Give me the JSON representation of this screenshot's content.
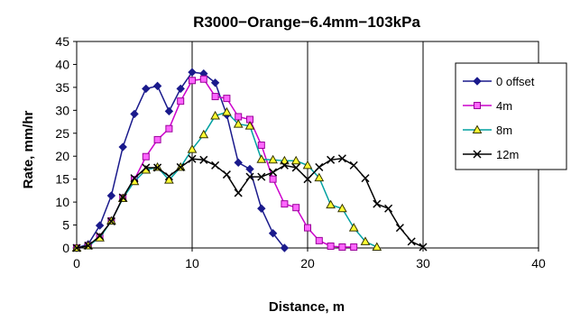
{
  "chart_data": {
    "type": "line",
    "title": "R3000−Orange−6.4mm−103kPa",
    "xlabel": "Distance, m",
    "ylabel": "Rate, mm/hr",
    "xlim": [
      0,
      40
    ],
    "ylim": [
      0,
      45
    ],
    "xticks": [
      0,
      10,
      20,
      30,
      40
    ],
    "yticks": [
      0,
      5,
      10,
      15,
      20,
      25,
      30,
      35,
      40,
      45
    ],
    "grid": "vertical",
    "legend_position": "right",
    "series": [
      {
        "name": "0 offset",
        "color": "#1a1a8c",
        "marker": "diamond",
        "x": [
          0,
          1,
          2,
          3,
          4,
          5,
          6,
          7,
          8,
          9,
          10,
          11,
          12,
          13,
          14,
          15,
          16,
          17,
          18
        ],
        "y": [
          0,
          0.8,
          4.9,
          11.4,
          22.0,
          29.2,
          34.7,
          35.3,
          29.8,
          34.7,
          38.3,
          38.0,
          36.0,
          29.0,
          18.6,
          17.2,
          8.6,
          3.2,
          0
        ]
      },
      {
        "name": "4m",
        "color": "#cc00cc",
        "marker": "square",
        "x": [
          0,
          1,
          2,
          3,
          4,
          5,
          6,
          7,
          8,
          9,
          10,
          11,
          12,
          13,
          14,
          15,
          16,
          17,
          18,
          19,
          20,
          21,
          22,
          23,
          24
        ],
        "y": [
          0,
          0.5,
          2.4,
          5.9,
          10.9,
          14.9,
          19.9,
          23.6,
          26.0,
          32.0,
          36.5,
          36.8,
          33.0,
          32.6,
          28.6,
          28.0,
          22.4,
          15.0,
          9.6,
          8.8,
          4.4,
          1.6,
          0.4,
          0.2,
          0.2
        ]
      },
      {
        "name": "8m",
        "color": "#00a0a0",
        "marker": "triangle",
        "x": [
          0,
          1,
          2,
          3,
          4,
          5,
          6,
          7,
          8,
          9,
          10,
          11,
          12,
          13,
          14,
          15,
          16,
          17,
          18,
          19,
          20,
          21,
          22,
          23,
          24,
          25,
          26
        ],
        "y": [
          0,
          0.5,
          2.2,
          5.9,
          10.8,
          14.5,
          17.0,
          17.6,
          14.8,
          17.6,
          21.5,
          24.7,
          28.8,
          29.6,
          27.0,
          26.6,
          19.3,
          19.2,
          19.0,
          19.0,
          18.0,
          15.3,
          9.4,
          8.6,
          4.4,
          1.4,
          0.2
        ]
      },
      {
        "name": "12m",
        "color": "#000000",
        "marker": "x",
        "x": [
          0,
          1,
          2,
          3,
          4,
          5,
          6,
          7,
          8,
          9,
          10,
          11,
          12,
          13,
          14,
          15,
          16,
          17,
          18,
          19,
          20,
          21,
          22,
          23,
          24,
          25,
          26,
          27,
          28,
          29,
          30
        ],
        "y": [
          0,
          0.5,
          2.6,
          5.8,
          11.0,
          15.2,
          17.5,
          17.5,
          15.6,
          17.6,
          19.4,
          19.2,
          18.0,
          16.0,
          12.0,
          15.5,
          15.5,
          16.5,
          18.0,
          17.5,
          15.0,
          17.6,
          19.2,
          19.5,
          18.0,
          15.2,
          9.6,
          8.6,
          4.4,
          1.4,
          0.2
        ]
      }
    ]
  }
}
